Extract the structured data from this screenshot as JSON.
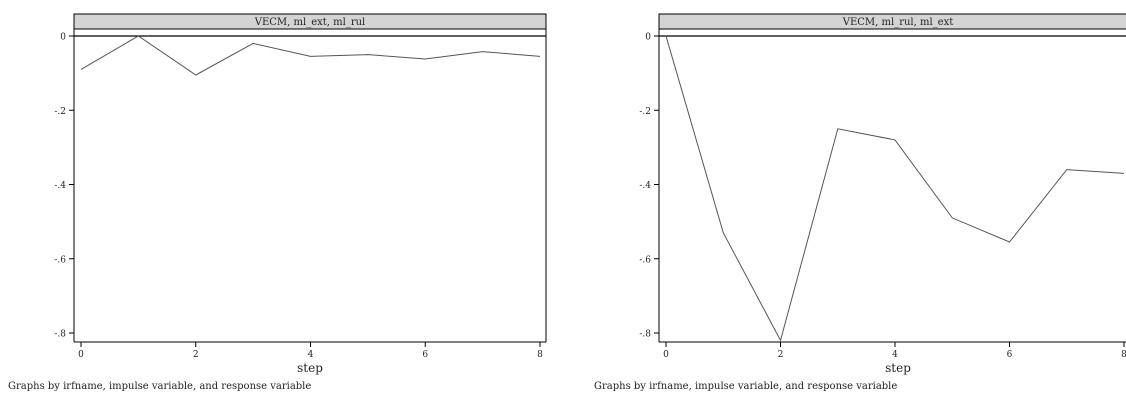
{
  "chart_data": [
    {
      "type": "line",
      "title": "VECM, ml_ext, ml_rul",
      "xlabel": "step",
      "ylabel": "",
      "x": [
        0,
        1,
        2,
        3,
        4,
        5,
        6,
        7,
        8
      ],
      "series": [
        {
          "values": [
            -0.09,
            0.0,
            -0.105,
            -0.02,
            -0.055,
            -0.05,
            -0.062,
            -0.042,
            -0.055
          ]
        }
      ],
      "xlim": [
        0,
        8
      ],
      "ylim": [
        -0.8,
        0
      ],
      "xticks": [
        "0",
        "2",
        "4",
        "6",
        "8"
      ],
      "yticks": [
        "0",
        "-.2",
        "-.4",
        "-.6",
        "-.8"
      ],
      "note": "Graphs by irfname, impulse variable, and response variable",
      "grid": false,
      "reference_line": 0
    },
    {
      "type": "line",
      "title": "VECM, ml_rul, ml_ext",
      "xlabel": "step",
      "ylabel": "",
      "x": [
        0,
        1,
        2,
        3,
        4,
        5,
        6,
        7,
        8
      ],
      "series": [
        {
          "values": [
            0.0,
            -0.53,
            -0.82,
            -0.25,
            -0.28,
            -0.49,
            -0.555,
            -0.36,
            -0.37
          ]
        }
      ],
      "xlim": [
        0,
        8
      ],
      "ylim": [
        -0.8,
        0
      ],
      "xticks": [
        "0",
        "2",
        "4",
        "6",
        "8"
      ],
      "yticks": [
        "0",
        "-.2",
        "-.4",
        "-.6",
        "-.8"
      ],
      "note": "Graphs by irfname, impulse variable, and response variable",
      "grid": false,
      "reference_line": 0
    }
  ],
  "colors": {
    "line": "#555555",
    "axis": "#000000",
    "title_band": "#d4d4d4",
    "text": "#222222"
  }
}
